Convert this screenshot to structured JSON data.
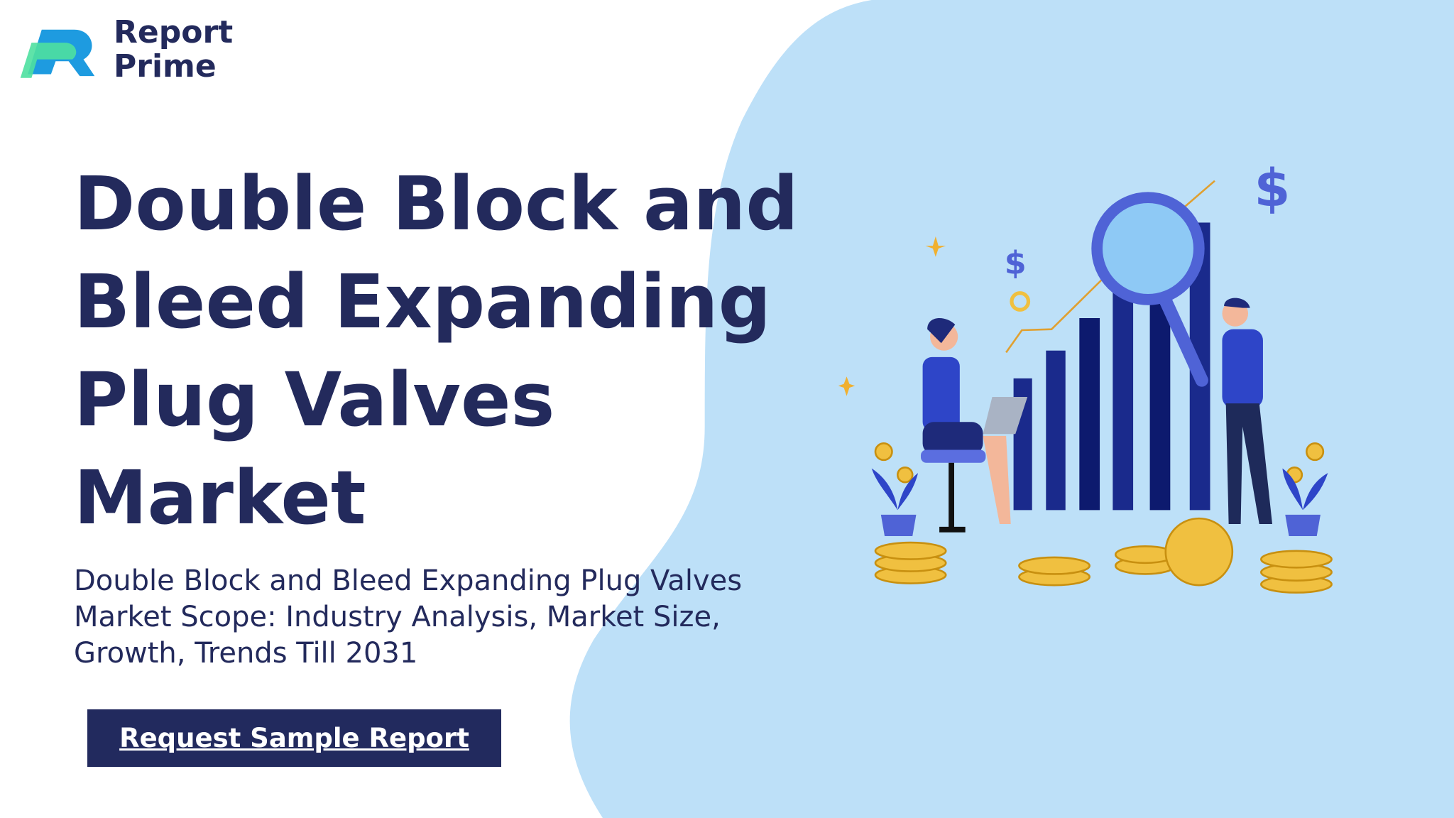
{
  "logo": {
    "line1": "Report",
    "line2": "Prime"
  },
  "header": {
    "title_lines": [
      "Double Block and",
      "Bleed Expanding",
      "Plug Valves",
      "Market"
    ],
    "subtitle_lines": [
      "Double Block and Bleed Expanding Plug Valves",
      "Market Scope: Industry Analysis, Market Size,",
      "Growth, Trends Till 2031"
    ]
  },
  "button": {
    "label": "Request Sample Report"
  }
}
